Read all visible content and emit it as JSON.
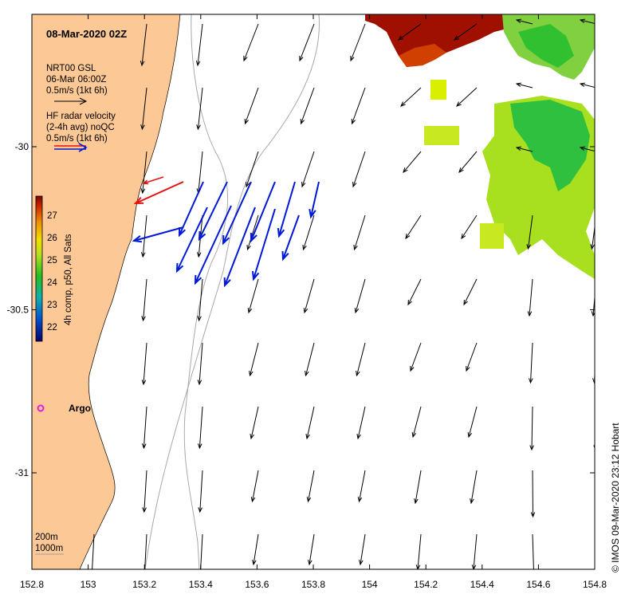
{
  "map": {
    "title": "08-Mar-2020 02Z",
    "credit": "© IMOS 09-Mar-2020 23:12 Hobart",
    "lon_ticks": [
      "152.8",
      "153",
      "153.2",
      "153.4",
      "153.6",
      "153.8",
      "154",
      "154.2",
      "154.4",
      "154.6",
      "154.8"
    ],
    "lat_ticks": [
      "-30",
      "-30.5",
      "-31"
    ],
    "legend": {
      "model_line1": "NRT00 GSL",
      "model_line2": "06-Mar 06:00Z",
      "model_scale": "0.5m/s (1kt 6h)",
      "radar_line1": "HF radar velocity",
      "radar_line2": "(2-4h avg) noQC",
      "radar_scale": "0.5m/s (1kt 6h)"
    },
    "colorbar": {
      "label": "4h comp, p50, All Sats",
      "ticks": [
        "22",
        "23",
        "24",
        "25",
        "26",
        "27"
      ]
    },
    "argo_label": "Argo",
    "isobaths": [
      "200m",
      "1000m"
    ],
    "colors": {
      "land": "#fcc895",
      "ocean": "#ffffff",
      "model_arrow": "#000000",
      "radar_arrow_blue": "#0018d8",
      "radar_arrow_red": "#e81010",
      "argo": "#e020e0",
      "isobath": "#a0a0a0"
    }
  }
}
